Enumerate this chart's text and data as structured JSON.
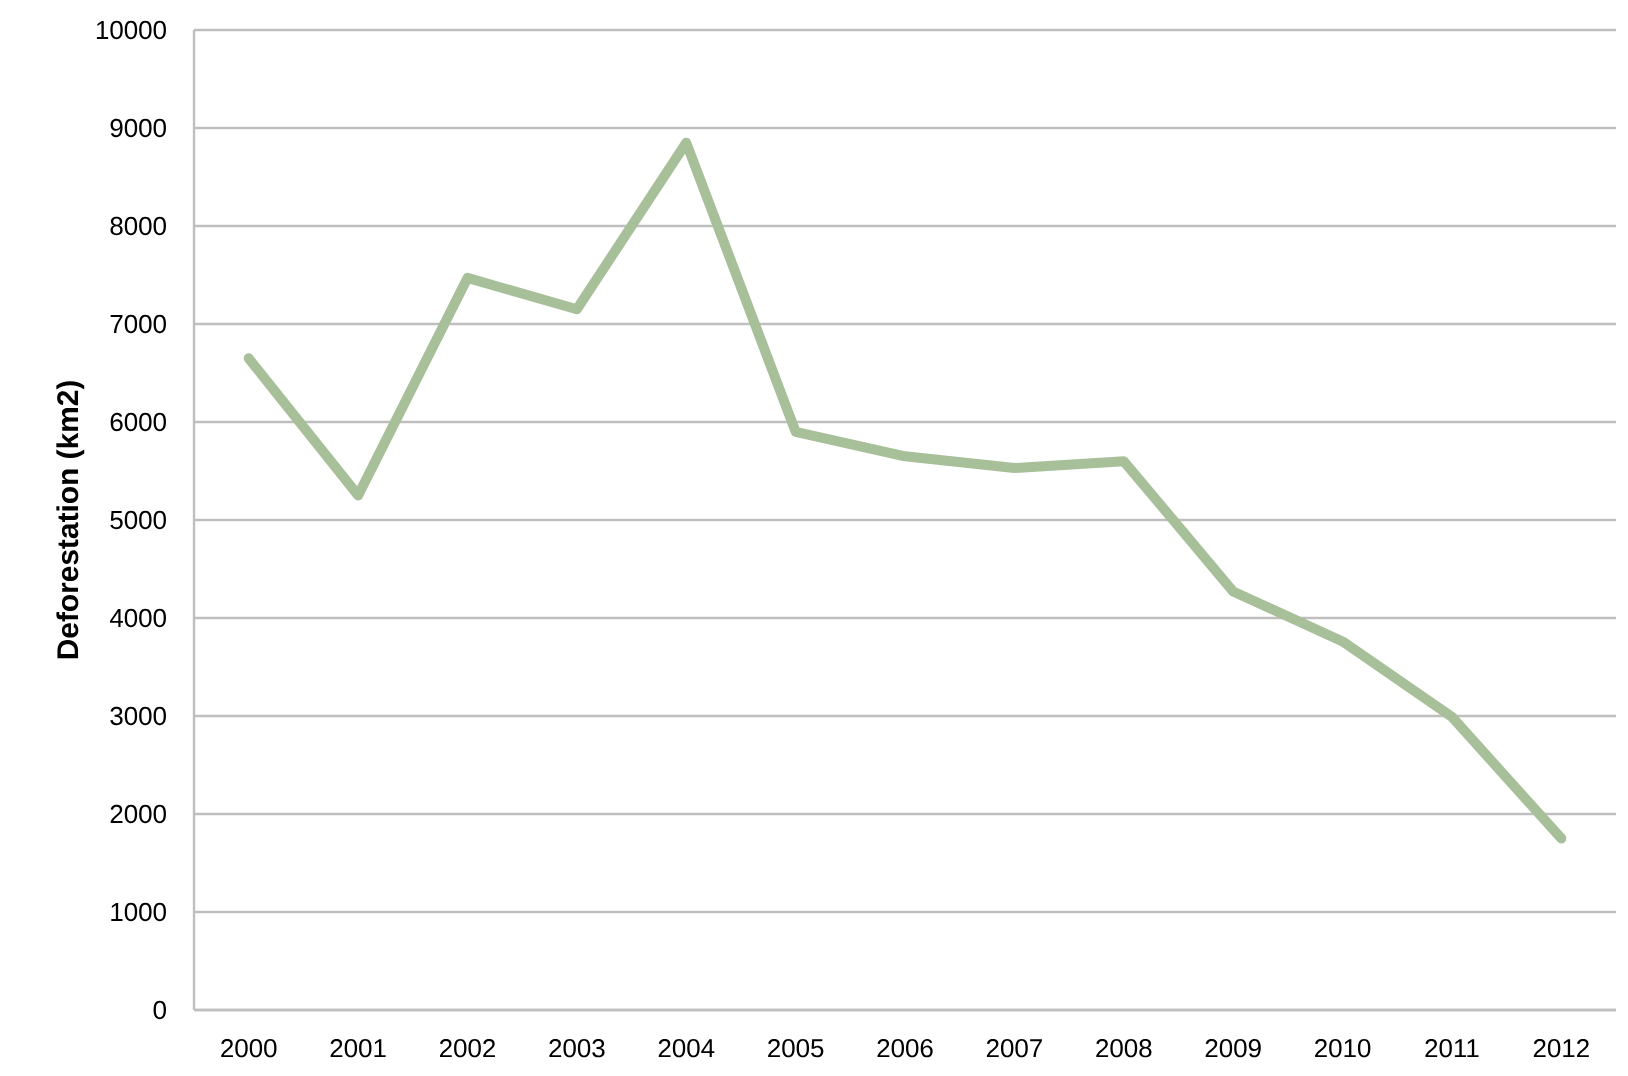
{
  "chart_data": {
    "type": "line",
    "ylabel": "Deforestation (km2)",
    "categories": [
      "2000",
      "2001",
      "2002",
      "2003",
      "2004",
      "2005",
      "2006",
      "2007",
      "2008",
      "2009",
      "2010",
      "2011",
      "2012"
    ],
    "values": [
      6650,
      5250,
      7470,
      7150,
      8850,
      5900,
      5650,
      5530,
      5600,
      4270,
      3760,
      2990,
      1750
    ],
    "color": "#a8c09a",
    "ylim": [
      0,
      10000
    ],
    "yticks": [
      0,
      1000,
      2000,
      3000,
      4000,
      5000,
      6000,
      7000,
      8000,
      9000,
      10000
    ],
    "grid": "y"
  }
}
